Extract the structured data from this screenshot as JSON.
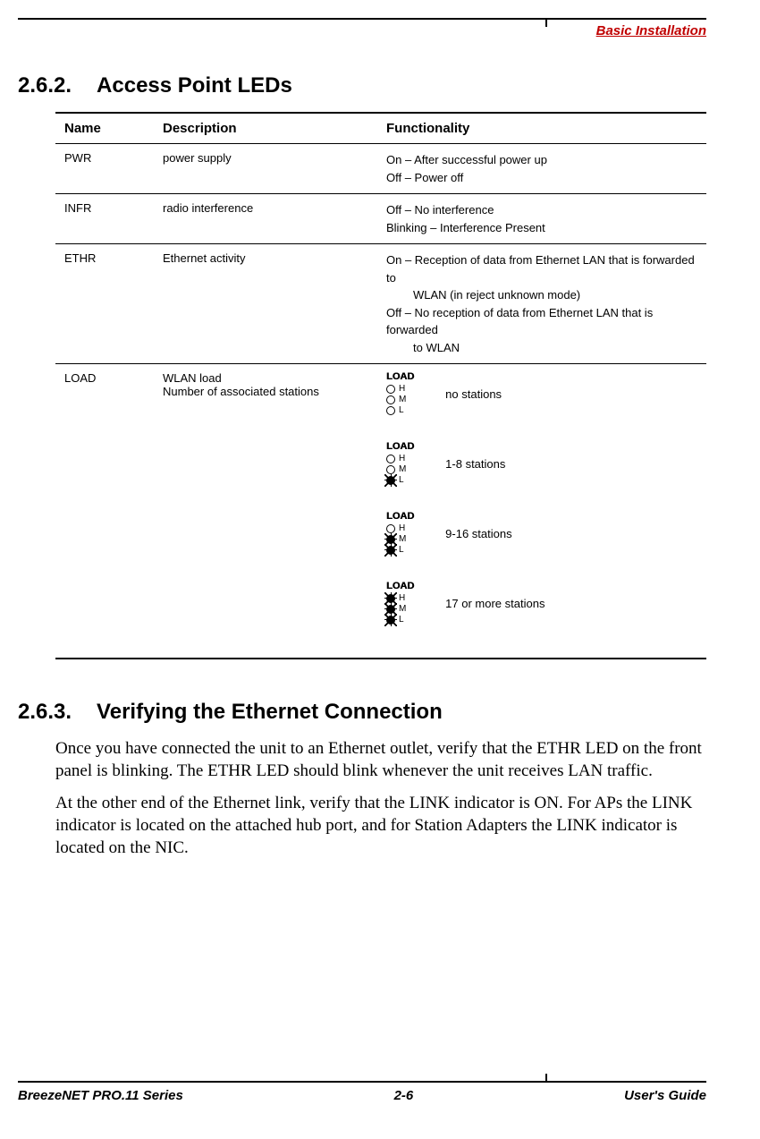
{
  "header": {
    "title": "Basic Installation"
  },
  "section1": {
    "number": "2.6.2.",
    "title": "Access Point LEDs"
  },
  "table": {
    "headers": {
      "name": "Name",
      "description": "Description",
      "functionality": "Functionality"
    },
    "rows": [
      {
        "name": "PWR",
        "description": "power supply",
        "func1": "On – After successful power up",
        "func2": "Off – Power off"
      },
      {
        "name": "INFR",
        "description": "radio interference",
        "func1": "Off – No interference",
        "func2": "Blinking – Interference Present"
      },
      {
        "name": "ETHR",
        "description": "Ethernet activity",
        "func1a": "On – Reception of data from Ethernet LAN that is forwarded to",
        "func1b": "WLAN (in reject unknown mode)",
        "func2a": "Off – No reception of data from Ethernet LAN that is forwarded",
        "func2b": "to WLAN"
      },
      {
        "name": "LOAD",
        "desc1": "WLAN load",
        "desc2": "Number of associated stations"
      }
    ]
  },
  "load": {
    "title": "LOAD",
    "H": "H",
    "M": "M",
    "L": "L",
    "states": [
      {
        "text": "no stations",
        "h": false,
        "m": false,
        "l": false
      },
      {
        "text": "1-8 stations",
        "h": false,
        "m": false,
        "l": true
      },
      {
        "text": "9-16 stations",
        "h": false,
        "m": true,
        "l": true
      },
      {
        "text": "17 or more stations",
        "h": true,
        "m": true,
        "l": true
      }
    ]
  },
  "section2": {
    "number": "2.6.3.",
    "title": "Verifying the Ethernet Connection",
    "para1": "Once you have connected the unit to an Ethernet outlet, verify that the ETHR LED on the front panel is blinking. The ETHR LED should blink whenever the unit receives LAN traffic.",
    "para2": "At the other end of the Ethernet link, verify that the LINK indicator is ON. For APs the LINK indicator is located on the attached hub port, and for Station Adapters the LINK indicator is located on the NIC."
  },
  "footer": {
    "left": "BreezeNET PRO.11 Series",
    "center": "2-6",
    "right": "User's Guide"
  },
  "colors": {
    "accent": "#c00000",
    "text": "#000000",
    "background": "#ffffff"
  }
}
